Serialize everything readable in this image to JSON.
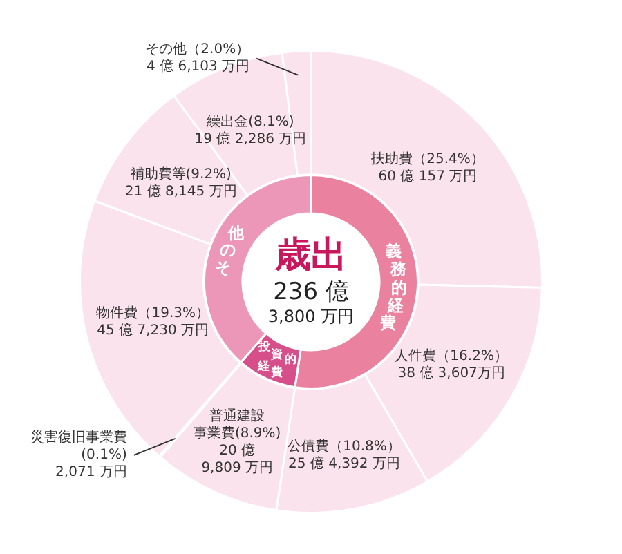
{
  "chart_data": [
    {
      "type": "donut",
      "categories": [
        "扶助費",
        "人件費",
        "公債費",
        "普通建設事業費",
        "災害復旧事業費",
        "物件費",
        "補助費等",
        "繰出金",
        "その他"
      ],
      "values": [
        25.4,
        16.2,
        10.8,
        8.9,
        0.1,
        19.3,
        9.2,
        8.1,
        2.0
      ],
      "colors": [
        "#fae3ec",
        "#fae3ec",
        "#fae3ec",
        "#fae3ec",
        "#fae3ec",
        "#fae3ec",
        "#fae3ec",
        "#fae3ec",
        "#fae3ec"
      ],
      "value_labels": [
        "（25.4%）\n60 億 157 万円",
        "（16.2%）\n38 億 3,607万円",
        "（10.8%）\n25 億 4,392 万円",
        "(8.9%)\n20 億\n9,809 万円",
        "\n(0.1%)\n2,071 万円",
        "（19.3%）\n45 億 7,230 万円",
        "(9.2%)\n21 億 8,145 万円",
        "(8.1%)\n19 億 2,286 万円",
        "（2.0%）\n4 億 6,103 万円"
      ]
    },
    {
      "type": "donut",
      "title": "歳出",
      "subtitle": "236 億\n3,800 万円",
      "categories": [
        "義務的経費",
        "投資的経費",
        "その他"
      ],
      "values": [
        52.4,
        9.0,
        38.6
      ],
      "colors": [
        "#e9819f",
        "#d64f8b",
        "#ec97b7"
      ]
    }
  ]
}
